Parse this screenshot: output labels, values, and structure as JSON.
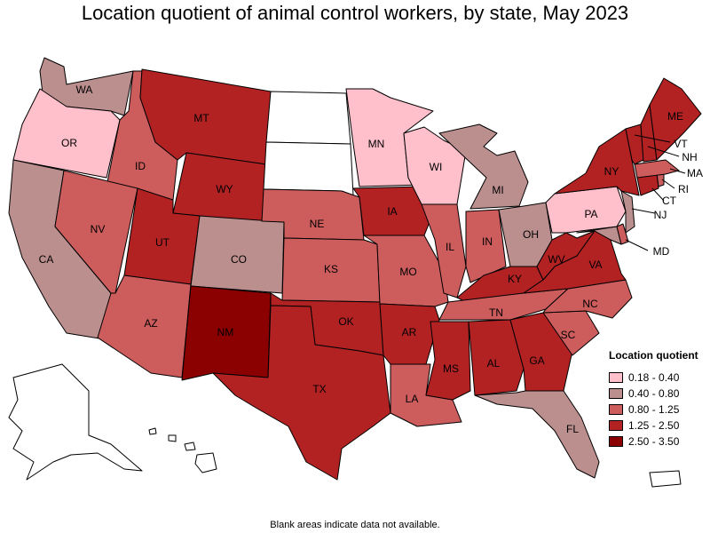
{
  "title": "Location quotient of animal control workers, by state, May 2023",
  "footnote": "Blank areas indicate data not available.",
  "legend": {
    "title": "Location quotient",
    "items": [
      {
        "label": "0.18 - 0.40",
        "color": "#ffc0cb"
      },
      {
        "label": "0.40 - 0.80",
        "color": "#bc8f8f"
      },
      {
        "label": "0.80 - 1.25",
        "color": "#cd5c5c"
      },
      {
        "label": "1.25 - 2.50",
        "color": "#b22222"
      },
      {
        "label": "2.50 - 3.50",
        "color": "#8b0000"
      }
    ]
  },
  "states": [
    {
      "abbr": "WA",
      "class": "0.40 - 0.80"
    },
    {
      "abbr": "OR",
      "class": "0.18 - 0.40"
    },
    {
      "abbr": "CA",
      "class": "0.40 - 0.80"
    },
    {
      "abbr": "ID",
      "class": "0.80 - 1.25"
    },
    {
      "abbr": "NV",
      "class": "0.80 - 1.25"
    },
    {
      "abbr": "MT",
      "class": "1.25 - 2.50"
    },
    {
      "abbr": "WY",
      "class": "1.25 - 2.50"
    },
    {
      "abbr": "UT",
      "class": "1.25 - 2.50"
    },
    {
      "abbr": "AZ",
      "class": "0.80 - 1.25"
    },
    {
      "abbr": "CO",
      "class": "0.40 - 0.80"
    },
    {
      "abbr": "NM",
      "class": "2.50 - 3.50"
    },
    {
      "abbr": "ND",
      "class": ""
    },
    {
      "abbr": "SD",
      "class": ""
    },
    {
      "abbr": "NE",
      "class": "0.80 - 1.25"
    },
    {
      "abbr": "KS",
      "class": "0.80 - 1.25"
    },
    {
      "abbr": "OK",
      "class": "1.25 - 2.50"
    },
    {
      "abbr": "TX",
      "class": "1.25 - 2.50"
    },
    {
      "abbr": "MN",
      "class": "0.18 - 0.40"
    },
    {
      "abbr": "IA",
      "class": "1.25 - 2.50"
    },
    {
      "abbr": "MO",
      "class": "0.80 - 1.25"
    },
    {
      "abbr": "AR",
      "class": "1.25 - 2.50"
    },
    {
      "abbr": "LA",
      "class": "0.80 - 1.25"
    },
    {
      "abbr": "WI",
      "class": "0.18 - 0.40"
    },
    {
      "abbr": "IL",
      "class": "0.80 - 1.25"
    },
    {
      "abbr": "MI",
      "class": "0.40 - 0.80"
    },
    {
      "abbr": "IN",
      "class": "0.80 - 1.25"
    },
    {
      "abbr": "OH",
      "class": "0.40 - 0.80"
    },
    {
      "abbr": "KY",
      "class": "1.25 - 2.50"
    },
    {
      "abbr": "TN",
      "class": "0.80 - 1.25"
    },
    {
      "abbr": "MS",
      "class": "1.25 - 2.50"
    },
    {
      "abbr": "AL",
      "class": "1.25 - 2.50"
    },
    {
      "abbr": "GA",
      "class": "1.25 - 2.50"
    },
    {
      "abbr": "FL",
      "class": "0.40 - 0.80"
    },
    {
      "abbr": "SC",
      "class": "0.80 - 1.25"
    },
    {
      "abbr": "NC",
      "class": "0.80 - 1.25"
    },
    {
      "abbr": "VA",
      "class": "1.25 - 2.50"
    },
    {
      "abbr": "WV",
      "class": "1.25 - 2.50"
    },
    {
      "abbr": "MD",
      "class": "0.40 - 0.80"
    },
    {
      "abbr": "DE",
      "class": "0.80 - 1.25"
    },
    {
      "abbr": "PA",
      "class": "0.18 - 0.40"
    },
    {
      "abbr": "NJ",
      "class": "0.40 - 0.80"
    },
    {
      "abbr": "NY",
      "class": "1.25 - 2.50"
    },
    {
      "abbr": "CT",
      "class": "1.25 - 2.50"
    },
    {
      "abbr": "RI",
      "class": "0.80 - 1.25"
    },
    {
      "abbr": "MA",
      "class": "0.80 - 1.25"
    },
    {
      "abbr": "VT",
      "class": "1.25 - 2.50"
    },
    {
      "abbr": "NH",
      "class": "1.25 - 2.50"
    },
    {
      "abbr": "ME",
      "class": "1.25 - 2.50"
    },
    {
      "abbr": "AK",
      "class": ""
    },
    {
      "abbr": "HI",
      "class": ""
    },
    {
      "abbr": "PR",
      "class": ""
    }
  ]
}
